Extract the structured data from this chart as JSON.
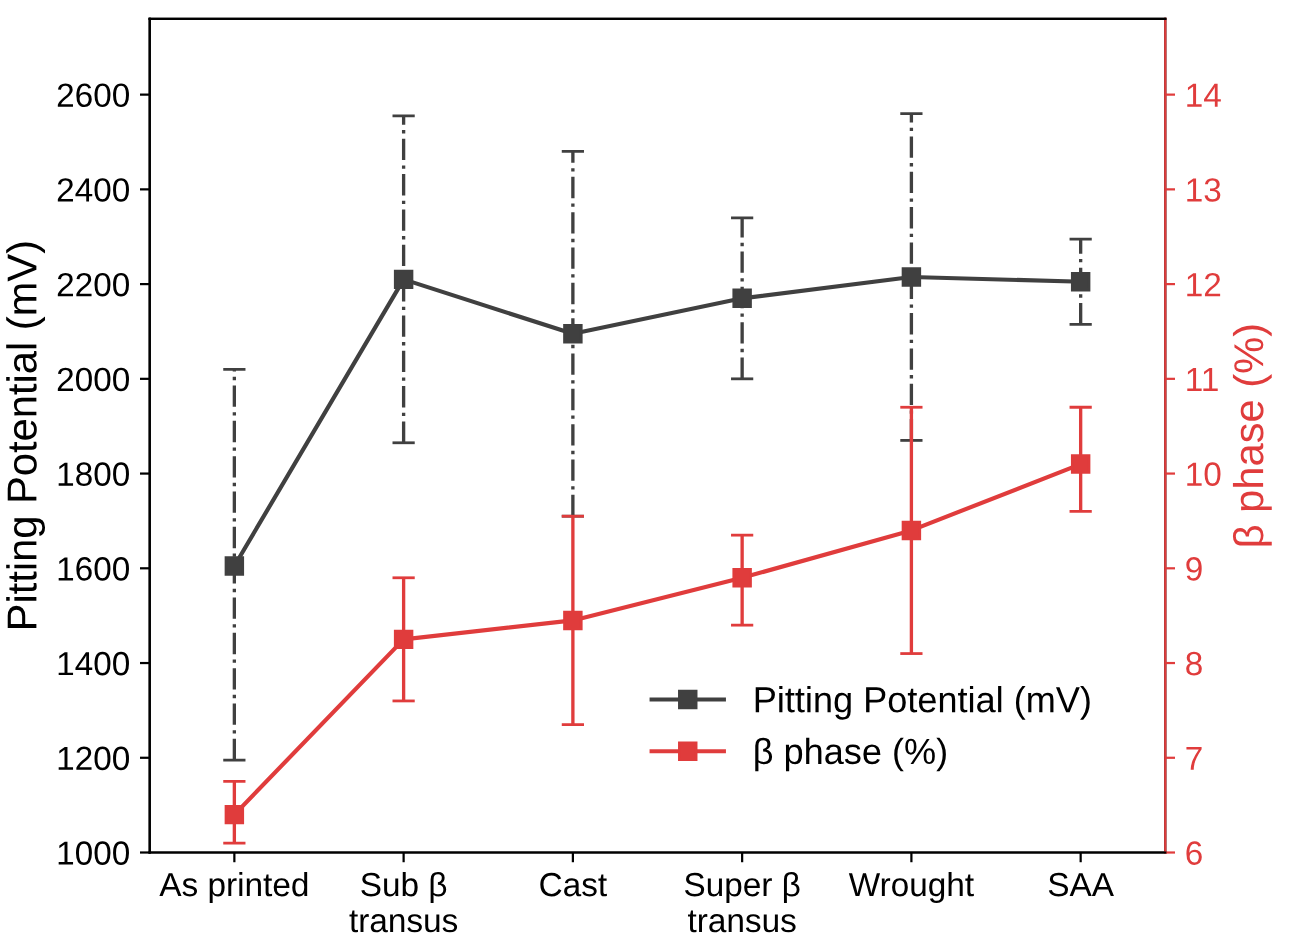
{
  "chart_data": {
    "type": "line",
    "ylabel": "Pitting Potential (mV)",
    "y2label": "β phase (%)",
    "categories": [
      "As printed",
      "Sub β\ntransus",
      "Cast",
      "Super β\ntransus",
      "Wrought",
      "SAA"
    ],
    "series": [
      {
        "name": "Pitting Potential (mV)",
        "color": "#404040",
        "values": [
          1605,
          2210,
          2095,
          2170,
          2215,
          2205
        ],
        "errors": [
          [
            1195,
            2020
          ],
          [
            1865,
            2555
          ],
          [
            1710,
            2480
          ],
          [
            2000,
            2340
          ],
          [
            1870,
            2560
          ],
          [
            2115,
            2295
          ]
        ],
        "line_style": "solid"
      },
      {
        "name": "β phase (%)",
        "color": "#e03c3c",
        "axis": "y2",
        "values": [
          6.4,
          8.25,
          8.45,
          8.9,
          9.4,
          10.1
        ],
        "errors": [
          [
            6.1,
            6.75
          ],
          [
            7.6,
            8.9
          ],
          [
            7.35,
            9.55
          ],
          [
            8.4,
            9.35
          ],
          [
            8.1,
            10.7
          ],
          [
            9.6,
            10.7
          ]
        ],
        "line_style": "solid"
      }
    ],
    "ylim": [
      1000,
      2760
    ],
    "yticks": [
      1000,
      1200,
      1400,
      1600,
      1800,
      2000,
      2200,
      2400,
      2600
    ],
    "y2lim": [
      6,
      14.8
    ],
    "y2ticks": [
      6,
      7,
      8,
      9,
      10,
      11,
      12,
      13,
      14
    ],
    "marker": "square",
    "grid": false,
    "legend": "bottom right"
  }
}
